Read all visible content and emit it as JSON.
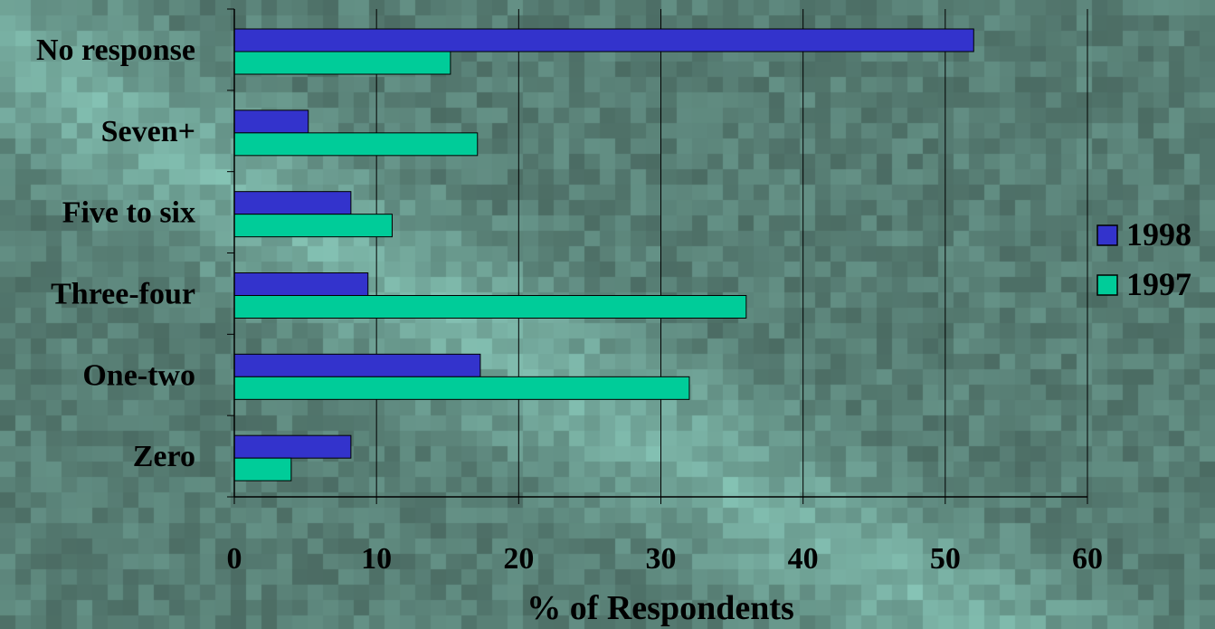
{
  "chart_data": {
    "type": "bar",
    "orientation": "horizontal",
    "categories": [
      "No response",
      "Seven+",
      "Five to six",
      "Three-four",
      "One-two",
      "Zero"
    ],
    "series": [
      {
        "name": "1998",
        "color": "#3333cc",
        "values": [
          52,
          5.2,
          8.2,
          9.4,
          17.3,
          8.2
        ]
      },
      {
        "name": "1997",
        "color": "#00cc99",
        "values": [
          15.2,
          17.1,
          11.1,
          36,
          32,
          4
        ]
      }
    ],
    "xlabel": "% of Respondents",
    "ylabel": "",
    "title": "",
    "xlim": [
      0,
      60
    ],
    "xticks": [
      0,
      10,
      20,
      30,
      40,
      50,
      60
    ],
    "grid": "vertical",
    "legend": "right"
  }
}
